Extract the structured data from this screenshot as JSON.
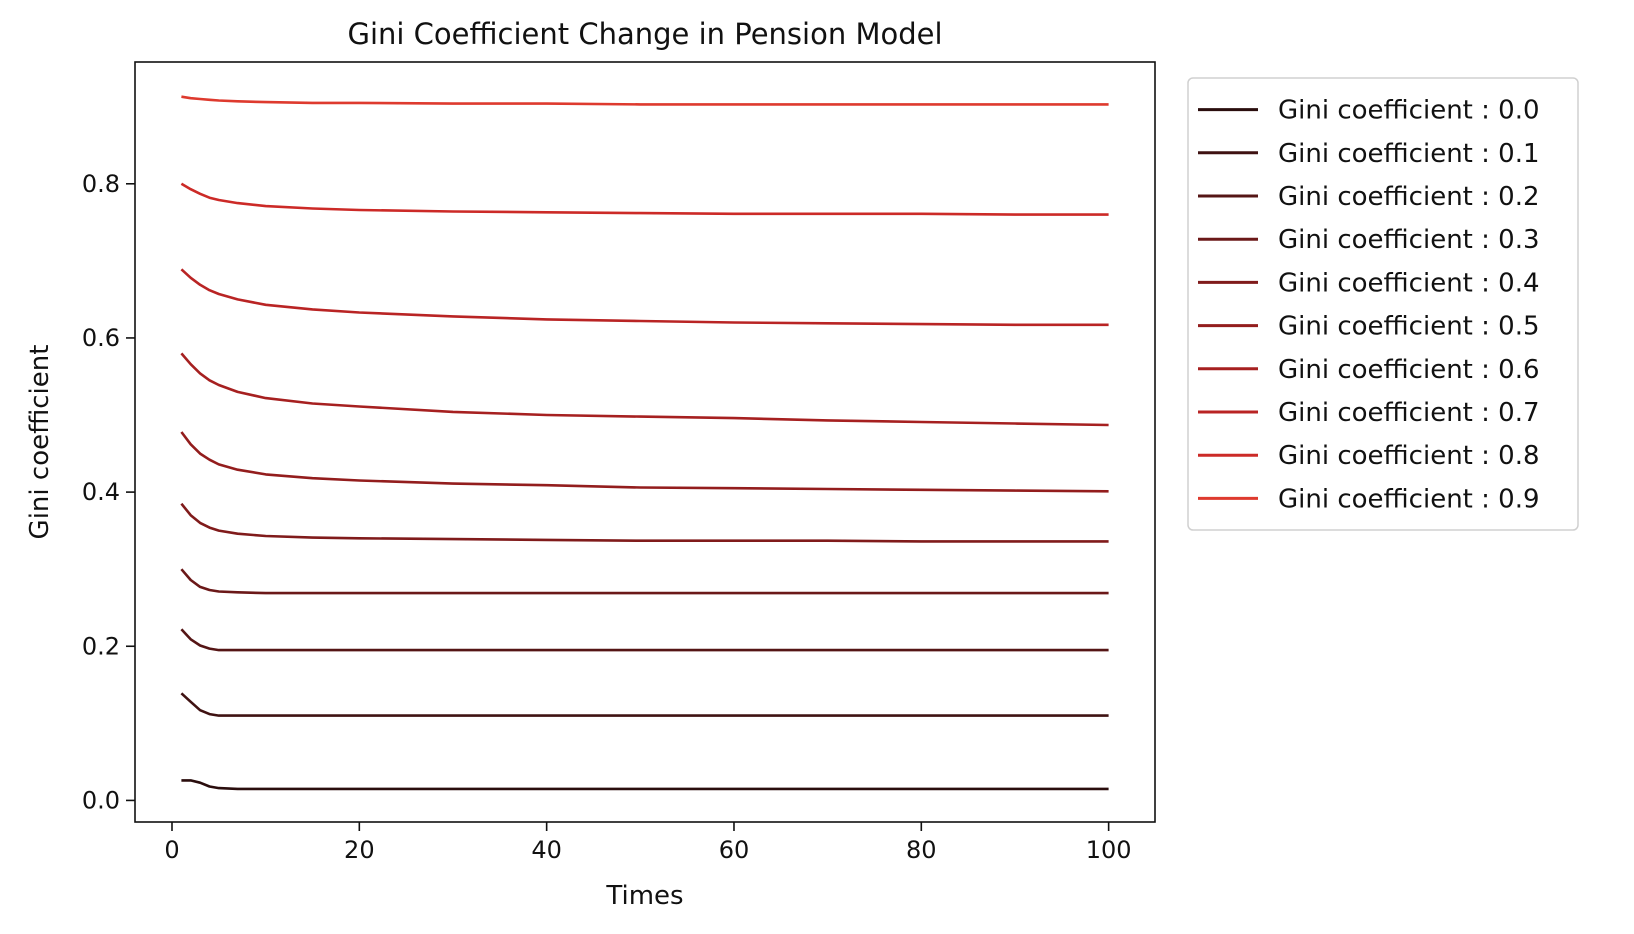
{
  "chart_data": {
    "type": "line",
    "title": "Gini Coefficient Change in Pension Model",
    "xlabel": "Times",
    "ylabel": "Gini coefficient",
    "xlim": [
      -3.95,
      104.95
    ],
    "ylim": [
      -0.028,
      0.958
    ],
    "xticks": [
      0,
      20,
      40,
      60,
      80,
      100
    ],
    "yticks": [
      0.0,
      0.2,
      0.4,
      0.6,
      0.8
    ],
    "xtick_labels": [
      "0",
      "20",
      "40",
      "60",
      "80",
      "100"
    ],
    "ytick_labels": [
      "0.0",
      "0.2",
      "0.4",
      "0.6",
      "0.8"
    ],
    "grid": false,
    "legend_position": "outside-right-top",
    "x": [
      1,
      2,
      3,
      4,
      5,
      7,
      10,
      15,
      20,
      30,
      40,
      50,
      60,
      70,
      80,
      90,
      100
    ],
    "series": [
      {
        "name": "Gini coefficient : 0.0",
        "color": "#2a0d0d",
        "values": [
          0.026,
          0.026,
          0.023,
          0.018,
          0.016,
          0.015,
          0.015,
          0.015,
          0.015,
          0.015,
          0.015,
          0.015,
          0.015,
          0.015,
          0.015,
          0.015,
          0.015
        ]
      },
      {
        "name": "Gini coefficient : 0.1",
        "color": "#3f1212",
        "values": [
          0.139,
          0.128,
          0.117,
          0.112,
          0.11,
          0.11,
          0.11,
          0.11,
          0.11,
          0.11,
          0.11,
          0.11,
          0.11,
          0.11,
          0.11,
          0.11,
          0.11
        ]
      },
      {
        "name": "Gini coefficient : 0.2",
        "color": "#551515",
        "values": [
          0.222,
          0.209,
          0.201,
          0.197,
          0.195,
          0.195,
          0.195,
          0.195,
          0.195,
          0.195,
          0.195,
          0.195,
          0.195,
          0.195,
          0.195,
          0.195,
          0.195
        ]
      },
      {
        "name": "Gini coefficient : 0.3",
        "color": "#6b1818",
        "values": [
          0.3,
          0.286,
          0.277,
          0.273,
          0.271,
          0.27,
          0.269,
          0.269,
          0.269,
          0.269,
          0.269,
          0.269,
          0.269,
          0.269,
          0.269,
          0.269,
          0.269
        ]
      },
      {
        "name": "Gini coefficient : 0.4",
        "color": "#801b1b",
        "values": [
          0.385,
          0.37,
          0.36,
          0.354,
          0.35,
          0.346,
          0.343,
          0.341,
          0.34,
          0.339,
          0.338,
          0.337,
          0.337,
          0.337,
          0.336,
          0.336,
          0.336
        ]
      },
      {
        "name": "Gini coefficient : 0.5",
        "color": "#931d1d",
        "values": [
          0.478,
          0.462,
          0.45,
          0.442,
          0.436,
          0.429,
          0.423,
          0.418,
          0.415,
          0.411,
          0.409,
          0.406,
          0.405,
          0.404,
          0.403,
          0.402,
          0.401
        ]
      },
      {
        "name": "Gini coefficient : 0.6",
        "color": "#a62020",
        "values": [
          0.58,
          0.566,
          0.554,
          0.545,
          0.539,
          0.53,
          0.522,
          0.515,
          0.511,
          0.504,
          0.5,
          0.498,
          0.496,
          0.493,
          0.491,
          0.489,
          0.487
        ]
      },
      {
        "name": "Gini coefficient : 0.7",
        "color": "#b92424",
        "values": [
          0.689,
          0.678,
          0.669,
          0.662,
          0.657,
          0.65,
          0.643,
          0.637,
          0.633,
          0.628,
          0.624,
          0.622,
          0.62,
          0.619,
          0.618,
          0.617,
          0.617
        ]
      },
      {
        "name": "Gini coefficient : 0.8",
        "color": "#cc2a27",
        "values": [
          0.8,
          0.793,
          0.787,
          0.782,
          0.779,
          0.775,
          0.771,
          0.768,
          0.766,
          0.764,
          0.763,
          0.762,
          0.761,
          0.761,
          0.761,
          0.76,
          0.76
        ]
      },
      {
        "name": "Gini coefficient : 0.9",
        "color": "#de3a2e",
        "values": [
          0.913,
          0.911,
          0.91,
          0.909,
          0.908,
          0.907,
          0.906,
          0.905,
          0.905,
          0.904,
          0.904,
          0.903,
          0.903,
          0.903,
          0.903,
          0.903,
          0.903
        ]
      }
    ]
  }
}
